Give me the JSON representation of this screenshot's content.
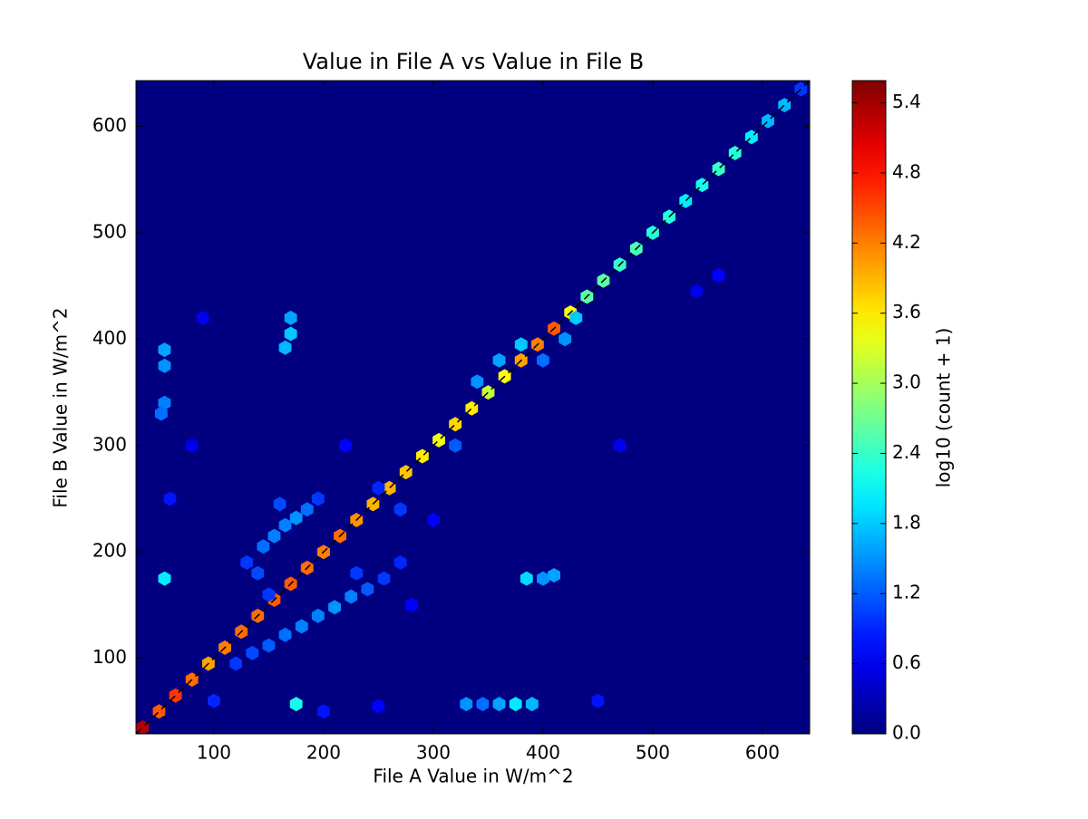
{
  "chart_data": {
    "type": "hexbin",
    "title": "Value in File A vs Value in File B",
    "x_label": "File A Value in W/m^2",
    "y_label": "File B Value in W/m^2",
    "colorbar_label": "log10 (count + 1)",
    "colormap": "jet",
    "identity_line": true,
    "xlim": [
      29,
      643
    ],
    "ylim": [
      29,
      643
    ],
    "xticks": [
      100,
      200,
      300,
      400,
      500,
      600
    ],
    "yticks": [
      100,
      200,
      300,
      400,
      500,
      600
    ],
    "clim": [
      0,
      5.59
    ],
    "cticks": [
      {
        "value": 0,
        "label": "0.0"
      },
      0.6,
      1.2,
      1.8,
      2.4,
      {
        "value": 3,
        "label": "3.0"
      },
      3.6,
      4.2,
      4.8,
      5.4
    ],
    "cells": {
      "x": [
        35,
        50,
        65,
        80,
        95,
        110,
        125,
        140,
        155,
        170,
        185,
        200,
        215,
        230,
        245,
        260,
        275,
        290,
        305,
        320,
        335,
        350,
        365,
        380,
        395,
        410,
        425,
        440,
        455,
        470,
        485,
        500,
        515,
        530,
        545,
        560,
        575,
        590,
        605,
        620,
        635,
        120,
        135,
        150,
        165,
        180,
        195,
        210,
        225,
        240,
        255,
        270,
        130,
        145,
        155,
        165,
        175,
        185,
        160,
        140,
        195,
        150,
        340,
        360,
        380,
        420,
        430,
        400,
        320,
        270,
        55,
        55,
        55,
        52,
        170,
        170,
        165,
        55,
        175,
        330,
        345,
        360,
        375,
        390,
        385,
        400,
        410,
        100,
        200,
        250,
        450,
        60,
        80,
        220,
        300,
        470,
        560,
        540,
        90,
        250,
        230,
        280
      ],
      "y": [
        35,
        50,
        65,
        80,
        95,
        110,
        125,
        140,
        155,
        170,
        185,
        200,
        215,
        230,
        245,
        260,
        275,
        290,
        305,
        320,
        335,
        350,
        365,
        380,
        395,
        410,
        425,
        440,
        455,
        470,
        485,
        500,
        515,
        530,
        545,
        560,
        575,
        590,
        605,
        620,
        635,
        95,
        105,
        112,
        122,
        130,
        140,
        148,
        158,
        165,
        175,
        190,
        190,
        205,
        215,
        225,
        232,
        240,
        245,
        180,
        250,
        160,
        360,
        380,
        395,
        400,
        420,
        380,
        300,
        240,
        390,
        375,
        340,
        330,
        420,
        405,
        392,
        175,
        57,
        57,
        57,
        57,
        57,
        57,
        175,
        175,
        178,
        60,
        50,
        55,
        60,
        250,
        300,
        300,
        230,
        300,
        460,
        445,
        420,
        260,
        180,
        150
      ],
      "values": [
        5.3,
        4.4,
        4.6,
        4.3,
        4.0,
        4.2,
        4.3,
        4.3,
        4.4,
        4.4,
        4.3,
        4.2,
        4.3,
        4.1,
        3.9,
        3.9,
        3.8,
        3.6,
        3.4,
        3.7,
        3.6,
        3.2,
        3.5,
        4.0,
        4.2,
        4.4,
        3.5,
        2.6,
        2.6,
        2.4,
        2.5,
        2.3,
        2.3,
        2.0,
        2.2,
        2.4,
        2.3,
        2.0,
        1.7,
        1.7,
        1.0,
        1.0,
        1.1,
        1.2,
        1.3,
        1.4,
        1.4,
        1.5,
        1.4,
        1.2,
        1.0,
        0.9,
        1.0,
        1.3,
        1.4,
        1.4,
        1.5,
        1.3,
        1.1,
        1.1,
        1.0,
        1.0,
        1.5,
        1.6,
        1.8,
        1.5,
        1.8,
        1.3,
        1.2,
        1.0,
        1.6,
        1.5,
        1.4,
        1.3,
        1.6,
        1.8,
        1.7,
        2.0,
        2.2,
        1.5,
        1.3,
        1.6,
        2.0,
        1.7,
        1.9,
        1.5,
        1.6,
        0.9,
        0.8,
        0.7,
        0.8,
        0.8,
        0.6,
        0.7,
        0.7,
        0.6,
        0.7,
        0.6,
        0.6,
        0.9,
        1.0,
        0.7
      ]
    }
  }
}
